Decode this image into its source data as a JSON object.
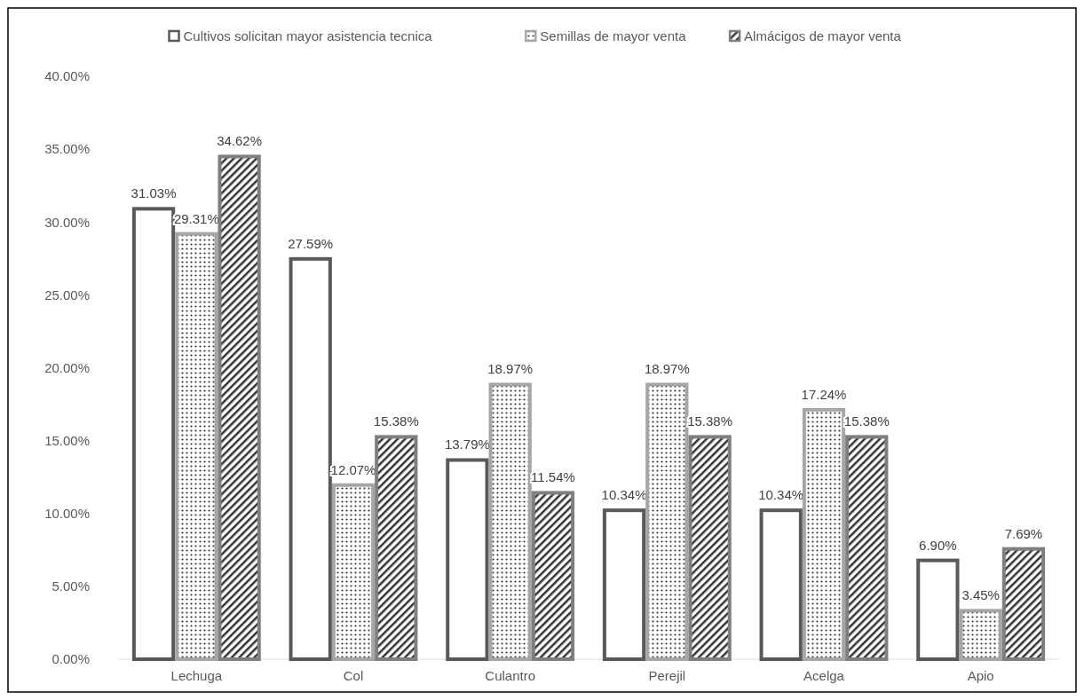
{
  "chart_data": {
    "type": "bar",
    "categories": [
      "Lechuga",
      "Col",
      "Culantro",
      "Perejil",
      "Acelga",
      "Apio"
    ],
    "series": [
      {
        "name": "Cultivos solicitan mayor asistencia tecnica",
        "color": "#595959",
        "values": [
          31.03,
          27.59,
          13.79,
          10.34,
          10.34,
          6.9
        ],
        "value_labels": [
          "31.03%",
          "27.59%",
          "13.79%",
          "10.34%",
          "10.34%",
          "6.90%"
        ]
      },
      {
        "name": "Semillas de mayor venta",
        "color": "#a6a6a6",
        "values": [
          29.31,
          12.07,
          18.97,
          18.97,
          17.24,
          3.45
        ],
        "value_labels": [
          "29.31%",
          "12.07%",
          "18.97%",
          "18.97%",
          "17.24%",
          "3.45%"
        ]
      },
      {
        "name": "Almácigos de mayor venta",
        "color": "#7f7f7f",
        "values": [
          34.62,
          15.38,
          11.54,
          15.38,
          15.38,
          7.69
        ],
        "value_labels": [
          "34.62%",
          "15.38%",
          "11.54%",
          "15.38%",
          "15.38%",
          "7.69%"
        ]
      }
    ],
    "ylim": [
      0,
      40
    ],
    "yticks": [
      {
        "value": 0,
        "label": "0.00%"
      },
      {
        "value": 5,
        "label": "5.00%"
      },
      {
        "value": 10,
        "label": "10.00%"
      },
      {
        "value": 15,
        "label": "15.00%"
      },
      {
        "value": 20,
        "label": "20.00%"
      },
      {
        "value": 25,
        "label": "25.00%"
      },
      {
        "value": 30,
        "label": "30.00%"
      },
      {
        "value": 35,
        "label": "35.00%"
      },
      {
        "value": 40,
        "label": "40.00%"
      }
    ],
    "grid": false,
    "legend": "top"
  }
}
